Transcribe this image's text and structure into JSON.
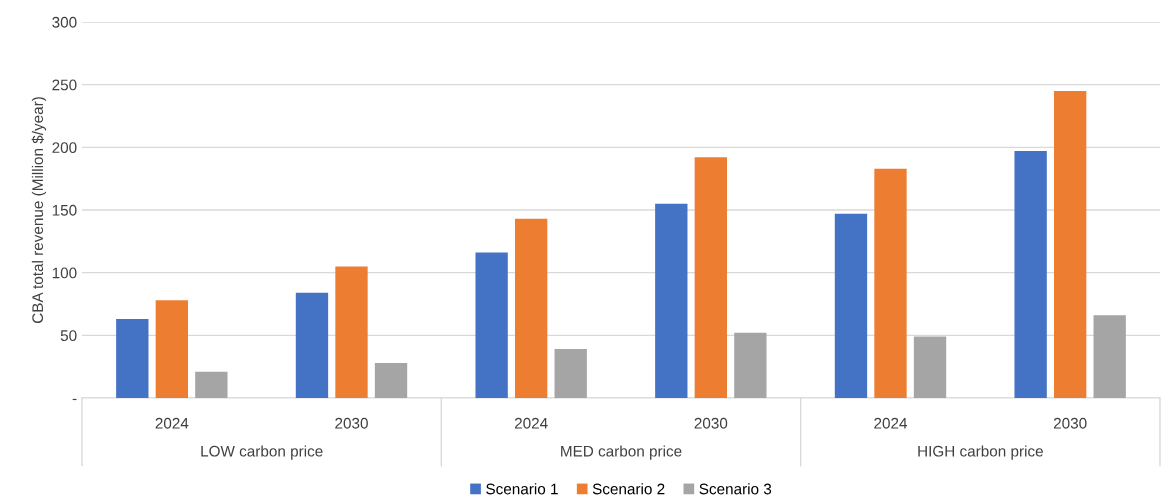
{
  "chart_data": {
    "type": "bar",
    "ylabel": "CBA total revenue (Million $/year)",
    "categories": [
      "2024",
      "2030",
      "2024",
      "2030",
      "2024",
      "2030"
    ],
    "series": [
      {
        "name": "Scenario 1",
        "color": "#4472c4",
        "values": [
          63,
          84,
          116,
          155,
          147,
          197
        ]
      },
      {
        "name": "Scenario 2",
        "color": "#ed7d31",
        "values": [
          78,
          105,
          143,
          192,
          183,
          245
        ]
      },
      {
        "name": "Scenario 3",
        "color": "#a5a5a5",
        "values": [
          21,
          28,
          39,
          52,
          49,
          66
        ]
      }
    ],
    "annotations": [
      "LOW carbon price",
      "MED carbon price",
      "HIGH carbon price"
    ],
    "ylim": [
      0,
      300
    ],
    "yticks": [
      {
        "value": 0,
        "label": "-"
      },
      50,
      100,
      150,
      200,
      250,
      300
    ],
    "grid": "y",
    "legend": "bottom"
  }
}
